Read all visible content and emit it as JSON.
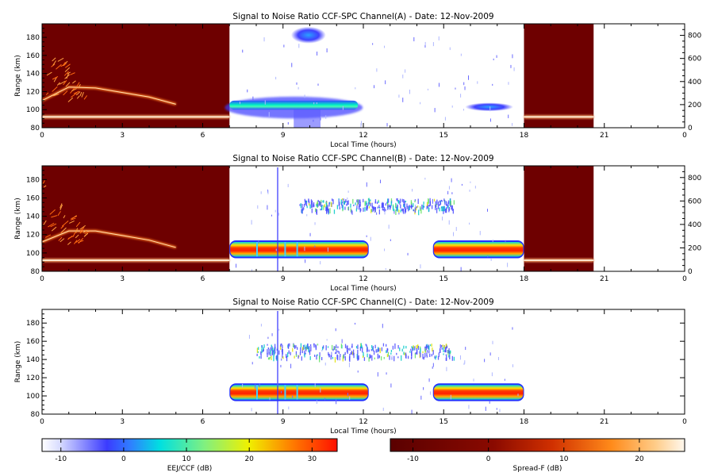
{
  "chart_data": [
    {
      "type": "heatmap",
      "title": "Signal to Noise Ratio CCF-SPC Channel(A) - Date: 12-Nov-2009",
      "xlabel": "Local Time (hours)",
      "ylabel": "Range (km)",
      "xlim": [
        0,
        24
      ],
      "ylim": [
        80,
        195
      ],
      "y2lim": [
        0,
        900
      ],
      "xticks": [
        "0",
        "3",
        "6",
        "9",
        "12",
        "15",
        "18",
        "21",
        "0"
      ],
      "yticks": [
        "80",
        "100",
        "120",
        "140",
        "160",
        "180"
      ],
      "y2ticks": [
        "0",
        "200",
        "400",
        "600",
        "800"
      ],
      "spread_f_windows_hours": [
        [
          0,
          7
        ],
        [
          18,
          20.6
        ]
      ],
      "spread_f_trace_km": [
        [
          0,
          110
        ],
        [
          1,
          125
        ],
        [
          2,
          124
        ],
        [
          3,
          119
        ],
        [
          4,
          114
        ],
        [
          5,
          106
        ]
      ],
      "spread_f_band_km": 92,
      "eej_blobs": [
        {
          "t": [
            9.3,
            10.6
          ],
          "km": [
            175,
            190
          ],
          "level_db": -5
        },
        {
          "t": [
            7.0,
            11.8
          ],
          "km": [
            100,
            110
          ],
          "level_db": 5
        },
        {
          "t": [
            15.8,
            17.6
          ],
          "km": [
            100,
            106
          ],
          "level_db": 0
        }
      ]
    },
    {
      "type": "heatmap",
      "title": "Signal to Noise Ratio CCF-SPC Channel(B) - Date: 12-Nov-2009",
      "xlabel": "Local Time (hours)",
      "ylabel": "Range (km)",
      "xlim": [
        0,
        24
      ],
      "ylim": [
        80,
        195
      ],
      "y2lim": [
        0,
        900
      ],
      "xticks": [
        "0",
        "3",
        "6",
        "9",
        "12",
        "15",
        "18",
        "21",
        "0"
      ],
      "yticks": [
        "80",
        "100",
        "120",
        "140",
        "160",
        "180"
      ],
      "y2ticks": [
        "0",
        "200",
        "400",
        "600",
        "800"
      ],
      "spread_f_windows_hours": [
        [
          0,
          7
        ],
        [
          18,
          20.6
        ]
      ],
      "spread_f_trace_km": [
        [
          0,
          112
        ],
        [
          1,
          124
        ],
        [
          2,
          124
        ],
        [
          3,
          119
        ],
        [
          4,
          114
        ],
        [
          5,
          106
        ]
      ],
      "spread_f_band_km": 92,
      "eej_layers": [
        {
          "t": [
            7.0,
            12.2
          ],
          "km": [
            96,
            112
          ],
          "level_db": 30
        },
        {
          "t": [
            14.6,
            18.0
          ],
          "km": [
            96,
            112
          ],
          "level_db": 30
        }
      ],
      "esf_band": {
        "t": [
          9.6,
          15.4
        ],
        "km": [
          147,
          160
        ]
      }
    },
    {
      "type": "heatmap",
      "title": "Signal to Noise Ratio CCF-SPC Channel(C) - Date: 12-Nov-2009",
      "xlabel": "Local Time (hours)",
      "ylabel": "Range (km)",
      "xlim": [
        0,
        24
      ],
      "ylim": [
        80,
        195
      ],
      "xticks": [
        "0",
        "3",
        "6",
        "9",
        "12",
        "15",
        "18",
        "21",
        "0"
      ],
      "yticks": [
        "80",
        "100",
        "120",
        "140",
        "160",
        "180"
      ],
      "eej_layers": [
        {
          "t": [
            7.0,
            12.2
          ],
          "km": [
            96,
            112
          ],
          "level_db": 30
        },
        {
          "t": [
            14.6,
            18.0
          ],
          "km": [
            96,
            112
          ],
          "level_db": 30
        }
      ],
      "esf_band": {
        "t": [
          8.0,
          15.4
        ],
        "km": [
          142,
          158
        ]
      }
    }
  ],
  "colorbars": [
    {
      "label": "EEJ/CCF (dB)",
      "range": [
        -13,
        34
      ],
      "ticks": [
        "-10",
        "0",
        "10",
        "20",
        "30"
      ],
      "tick_values": [
        -10,
        0,
        10,
        20,
        30
      ]
    },
    {
      "label": "Spread-F (dB)",
      "range": [
        -13,
        26
      ],
      "ticks": [
        "-10",
        "0",
        "10",
        "20"
      ],
      "tick_values": [
        -10,
        0,
        10,
        20
      ]
    }
  ]
}
